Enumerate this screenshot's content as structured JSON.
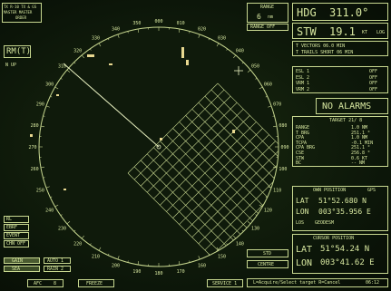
{
  "top_left": {
    "line1": "TX R-10 TX & GS",
    "line2": "MASTER  MASTER",
    "line3": "ORDER",
    "mode": "RM(T)",
    "sub": "N UP"
  },
  "range": {
    "label": "RANGE",
    "value": "6",
    "unit": "nm",
    "off_label": "RANGE OFF"
  },
  "heading": {
    "label": "HDG",
    "value": "311.0°"
  },
  "speed": {
    "label": "STW",
    "value": "19.1",
    "unit": "KT",
    "mode": "LOG"
  },
  "vectors": {
    "line1": "T VECTORS 06.0 MIN",
    "line2": "T TRAILS SHORT 06 MIN"
  },
  "guard": {
    "rows": [
      {
        "label": "ESL 1",
        "value": "OFF"
      },
      {
        "label": "ESL 2",
        "value": "OFF"
      },
      {
        "label": "VRM 1",
        "value": "OFF"
      },
      {
        "label": "VRM 2",
        "value": "OFF"
      }
    ]
  },
  "alarms": {
    "text": "NO ALARMS"
  },
  "target": {
    "title": "TARGET 21/ 8",
    "rows": [
      {
        "label": "RANGE",
        "value": "1.0 NM"
      },
      {
        "label": "T BRG",
        "value": "251.1 °"
      },
      {
        "label": "CPA",
        "value": "1.0 NM"
      },
      {
        "label": "TCPA",
        "value": "-0.1 MIN"
      },
      {
        "label": "CPA BRG",
        "value": "251.1 °"
      },
      {
        "label": "CSE",
        "value": "256.8 °"
      },
      {
        "label": "STW",
        "value": "0.6 KT"
      },
      {
        "label": "BC",
        "value": "-- NM"
      }
    ]
  },
  "own_position": {
    "title": "OWN POSITION",
    "mode": "GPS",
    "lat_label": "LAT",
    "lat": "51°52.680 N",
    "lon_label": "LON",
    "lon": "003°35.956 E",
    "los_label": "LOS",
    "los": "GEODESM"
  },
  "cursor_position": {
    "title": "CURSOR POSITION",
    "lat_label": "LAT",
    "lat": "51°54.24 N",
    "lon_label": "LON",
    "lon": "003°41.62 E"
  },
  "left_panel": {
    "items": [
      "RL",
      "EBRF",
      "EVENT",
      "CHN OFF"
    ],
    "gain_label": "GAIN",
    "auto_label": "AUTO 1",
    "sea_label": "SEA",
    "rain_label": "RAIN 2",
    "afc_label": "AFC",
    "afc_val": "8"
  },
  "bottom_bar": {
    "freeze": "FREEZE",
    "service": "SERVICE 1",
    "std": "STD",
    "centre": "CENTRE",
    "prompt": "L=Acquire/Select target  R=Cancel",
    "time": "06:12"
  },
  "bearing_labels": [
    "270",
    "280",
    "290",
    "300",
    "310",
    "320",
    "330",
    "340",
    "350",
    "000",
    "010",
    "020",
    "030",
    "040",
    "050",
    "060",
    "070",
    "080",
    "090",
    "100",
    "110",
    "120",
    "130",
    "140",
    "150",
    "160",
    "170",
    "180",
    "190",
    "200",
    "210",
    "220",
    "230",
    "240",
    "250",
    "260"
  ],
  "colors": {
    "phosphor": "#d8e8a0",
    "background": "#0b1508",
    "ring": "#c8d890"
  }
}
